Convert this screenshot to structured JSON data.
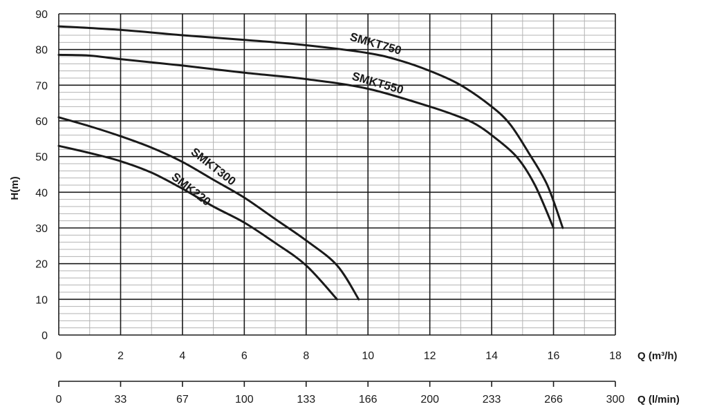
{
  "chart_data": {
    "type": "line",
    "title": "",
    "xlabel": "Q (m³/h)",
    "ylabel": "H(m)",
    "x2label": "Q (l/min)",
    "xlim": [
      0,
      18
    ],
    "ylim": [
      0,
      90
    ],
    "x_ticks": [
      "0",
      "2",
      "4",
      "6",
      "8",
      "10",
      "12",
      "14",
      "16",
      "18"
    ],
    "y_ticks": [
      "0",
      "10",
      "20",
      "30",
      "40",
      "50",
      "60",
      "70",
      "80",
      "90"
    ],
    "x2_ticks": [
      "0",
      "33",
      "67",
      "100",
      "133",
      "166",
      "200",
      "233",
      "266",
      "300"
    ],
    "grid": true,
    "series": [
      {
        "name": "SMKT750",
        "x": [
          0,
          2,
          4,
          6,
          8,
          10,
          11,
          12,
          13,
          14,
          14.6,
          15.2,
          15.8,
          16.3
        ],
        "y": [
          86.5,
          85.5,
          84,
          82.7,
          81.2,
          79,
          77,
          74,
          70,
          64,
          59,
          51,
          42,
          30
        ]
      },
      {
        "name": "SMKT550",
        "x": [
          0,
          1,
          2,
          4,
          6,
          8,
          10,
          12,
          13,
          13.5,
          14,
          14.8,
          15.4,
          16
        ],
        "y": [
          78.5,
          78.3,
          77.3,
          75.5,
          73.5,
          71.7,
          69,
          64,
          61,
          59,
          56,
          50,
          42,
          30
        ]
      },
      {
        "name": "SMKT300",
        "x": [
          0,
          1,
          2,
          3,
          4,
          5,
          6,
          7,
          8,
          9,
          9.7
        ],
        "y": [
          61,
          58.5,
          55.7,
          52.5,
          48.5,
          43.5,
          38.5,
          32.5,
          26.5,
          19.5,
          10
        ]
      },
      {
        "name": "SMK220",
        "x": [
          0,
          1,
          2,
          3,
          4,
          5,
          6,
          7,
          8,
          9
        ],
        "y": [
          53,
          51,
          48.7,
          45.5,
          41,
          36,
          31.5,
          25.8,
          19.5,
          10
        ]
      }
    ]
  }
}
